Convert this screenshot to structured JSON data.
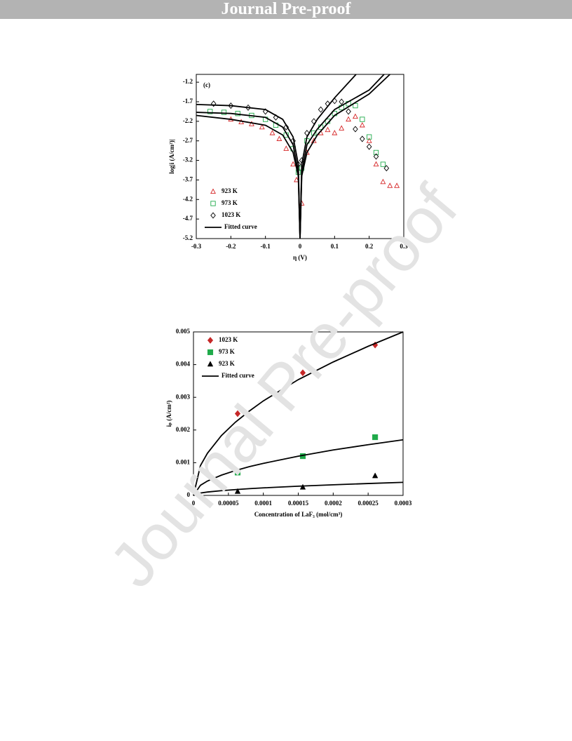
{
  "header": {
    "title": "Journal Pre-proof"
  },
  "watermark": "Journal Pre-proof",
  "chart_data": [
    {
      "type": "scatter",
      "annotation": "(c)",
      "x_label": "η (V)",
      "y_label": "log|i (A/cm²)|",
      "xlim": [
        -0.3,
        0.3
      ],
      "xticks": [
        -0.3,
        -0.2,
        -0.1,
        0,
        0.1,
        0.2,
        0.3
      ],
      "ylim": [
        -5.2,
        -1.0
      ],
      "yticks": [
        -1.2,
        -1.7,
        -2.2,
        -2.7,
        -3.2,
        -3.7,
        -4.2,
        -4.7,
        -5.2
      ],
      "legend": "lower left",
      "filled_markers": false,
      "series": [
        {
          "name": "923 K",
          "color": "#d62728",
          "marker": "triangle",
          "x": [
            -0.2,
            -0.17,
            -0.14,
            -0.11,
            -0.08,
            -0.06,
            -0.04,
            -0.02,
            -0.01,
            0.005,
            0.02,
            0.04,
            0.06,
            0.08,
            0.1,
            0.12,
            0.14,
            0.16,
            0.18,
            0.2,
            0.22,
            0.24,
            0.26,
            0.28
          ],
          "values": [
            -2.15,
            -2.22,
            -2.27,
            -2.35,
            -2.5,
            -2.65,
            -2.9,
            -3.3,
            -3.7,
            -4.3,
            -3.0,
            -2.7,
            -2.5,
            -2.42,
            -2.5,
            -2.38,
            -2.15,
            -2.08,
            -2.3,
            -2.7,
            -3.3,
            -3.75,
            -3.85,
            -3.85
          ]
        },
        {
          "name": "973 K",
          "color": "#1faa4a",
          "marker": "square",
          "x": [
            -0.26,
            -0.22,
            -0.18,
            -0.14,
            -0.1,
            -0.07,
            -0.04,
            -0.02,
            -0.005,
            0.005,
            0.02,
            0.04,
            0.06,
            0.08,
            0.1,
            0.12,
            0.14,
            0.16,
            0.18,
            0.2,
            0.22,
            0.24
          ],
          "values": [
            -1.95,
            -1.97,
            -2.0,
            -2.05,
            -2.15,
            -2.3,
            -2.55,
            -2.9,
            -3.5,
            -3.4,
            -2.7,
            -2.5,
            -2.35,
            -2.2,
            -2.0,
            -1.85,
            -1.75,
            -1.8,
            -2.15,
            -2.6,
            -3.0,
            -3.3
          ]
        },
        {
          "name": "1023 K",
          "color": "#000000",
          "marker": "diamond",
          "x": [
            -0.25,
            -0.2,
            -0.15,
            -0.1,
            -0.07,
            -0.04,
            -0.02,
            -0.005,
            0.005,
            0.02,
            0.04,
            0.06,
            0.08,
            0.1,
            0.12,
            0.14,
            0.16,
            0.18,
            0.2,
            0.22,
            0.25
          ],
          "values": [
            -1.75,
            -1.8,
            -1.85,
            -1.95,
            -2.1,
            -2.35,
            -2.7,
            -3.3,
            -3.2,
            -2.5,
            -2.2,
            -1.9,
            -1.75,
            -1.68,
            -1.7,
            -1.95,
            -2.4,
            -2.65,
            -2.85,
            -3.1,
            -3.4
          ]
        },
        {
          "name": "Fitted curve",
          "color": "#000000",
          "style": "line",
          "x": [
            -0.3,
            -0.2,
            -0.1,
            -0.05,
            -0.02,
            -0.005,
            0,
            0.005,
            0.02,
            0.05,
            0.1,
            0.162
          ],
          "values": [
            -1.77,
            -1.8,
            -1.9,
            -2.15,
            -2.6,
            -3.3,
            -5.2,
            -3.3,
            -2.6,
            -2.15,
            -1.6,
            -1.0
          ]
        },
        {
          "color": "#000000",
          "style": "line",
          "x": [
            -0.3,
            -0.2,
            -0.1,
            -0.05,
            -0.02,
            -0.005,
            0,
            0.005,
            0.02,
            0.05,
            0.1,
            0.2,
            0.243
          ],
          "values": [
            -1.97,
            -2.0,
            -2.1,
            -2.35,
            -2.8,
            -3.5,
            -5.2,
            -3.5,
            -2.8,
            -2.4,
            -1.9,
            -1.4,
            -1.0
          ]
        },
        {
          "color": "#000000",
          "style": "line",
          "x": [
            -0.3,
            -0.2,
            -0.1,
            -0.05,
            -0.02,
            -0.005,
            0,
            0.005,
            0.02,
            0.05,
            0.1,
            0.2,
            0.26
          ],
          "values": [
            -2.05,
            -2.15,
            -2.3,
            -2.55,
            -3.0,
            -3.6,
            -5.2,
            -3.6,
            -3.0,
            -2.55,
            -2.05,
            -1.5,
            -1.0
          ]
        }
      ]
    },
    {
      "type": "scatter",
      "x_label": "Concentration  of LaF₃ (mol/cm³)",
      "y_label": "iₚ (A/cm²)",
      "xlim": [
        0,
        0.0003
      ],
      "xticks": [
        0,
        5e-05,
        0.0001,
        0.00015,
        0.0002,
        0.00025,
        0.0003
      ],
      "ylim": [
        0,
        0.005
      ],
      "yticks": [
        0,
        0.001,
        0.002,
        0.003,
        0.004,
        0.005
      ],
      "legend": "upper left",
      "filled_markers": true,
      "series": [
        {
          "name": "1023 K",
          "color": "#c62828",
          "marker": "diamond",
          "x": [
            6.32e-05,
            0.0001565,
            0.00026
          ],
          "values": [
            0.0025,
            0.00375,
            0.0046
          ]
        },
        {
          "name": "973 K",
          "color": "#1faa4a",
          "marker": "square",
          "x": [
            6.32e-05,
            0.0001565,
            0.00026
          ],
          "values": [
            0.0007,
            0.0012,
            0.00178
          ]
        },
        {
          "name": "923 K",
          "color": "#000000",
          "marker": "triangle",
          "x": [
            6.32e-05,
            0.0001565,
            0.00026
          ],
          "values": [
            0.00012,
            0.00025,
            0.0006
          ]
        },
        {
          "name": "Fitted curve",
          "color": "#000000",
          "style": "line",
          "x": [
            0,
            1e-05,
            2e-05,
            4e-05,
            6e-05,
            8e-05,
            0.0001,
            0.00015,
            0.0002,
            0.00025,
            0.0003
          ],
          "values": [
            0,
            0.000913,
            0.00129,
            0.00183,
            0.00224,
            0.00258,
            0.00289,
            0.00354,
            0.00408,
            0.00456,
            0.005
          ]
        },
        {
          "color": "#000000",
          "style": "line",
          "x": [
            0,
            1e-05,
            2e-05,
            4e-05,
            6e-05,
            8e-05,
            0.0001,
            0.00015,
            0.0002,
            0.00025,
            0.0003
          ],
          "values": [
            0,
            0.00031,
            0.00044,
            0.00062,
            0.00076,
            0.00088,
            0.00098,
            0.0012,
            0.00139,
            0.00155,
            0.0017
          ]
        },
        {
          "color": "#000000",
          "style": "line",
          "x": [
            0,
            1e-05,
            2e-05,
            4e-05,
            6e-05,
            8e-05,
            0.0001,
            0.00015,
            0.0002,
            0.00025,
            0.0003
          ],
          "values": [
            0,
            7.3e-05,
            0.000103,
            0.000145,
            0.000178,
            0.000206,
            0.00023,
            0.000282,
            0.000325,
            0.000364,
            0.0004
          ]
        }
      ]
    }
  ]
}
